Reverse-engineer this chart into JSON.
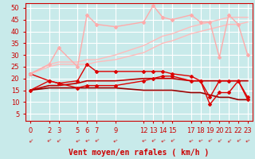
{
  "xlabel": "Vent moyen/en rafales ( km/h )",
  "background_color": "#c8eaea",
  "grid_color": "#ffffff",
  "xlim": [
    -0.5,
    23.5
  ],
  "ylim": [
    2,
    52
  ],
  "yticks": [
    5,
    10,
    15,
    20,
    25,
    30,
    35,
    40,
    45,
    50
  ],
  "xticks": [
    0,
    2,
    3,
    5,
    6,
    7,
    9,
    12,
    13,
    14,
    15,
    17,
    18,
    19,
    20,
    21,
    22,
    23
  ],
  "x": [
    0,
    2,
    3,
    5,
    6,
    7,
    9,
    12,
    13,
    14,
    15,
    17,
    18,
    19,
    20,
    21,
    22,
    23
  ],
  "series": [
    {
      "label": "pink_squiggly_with_markers",
      "y": [
        22,
        26,
        33,
        25,
        47,
        43,
        42,
        44,
        51,
        46,
        45,
        47,
        44,
        44,
        29,
        47,
        43,
        30
      ],
      "color": "#ffaaaa",
      "lw": 1.0,
      "marker": "D",
      "ms": 2.0,
      "zorder": 6
    },
    {
      "label": "pink_line_upper",
      "y": [
        22,
        26,
        27,
        27,
        28,
        28,
        30,
        34,
        36,
        38,
        39,
        42,
        43,
        44,
        45,
        46,
        46,
        46
      ],
      "color": "#ffbbbb",
      "lw": 1.0,
      "marker": null,
      "ms": 0,
      "zorder": 2
    },
    {
      "label": "pink_line_lower",
      "y": [
        22,
        25,
        26,
        26,
        26,
        27,
        28,
        31,
        33,
        35,
        36,
        39,
        40,
        41,
        42,
        43,
        43,
        44
      ],
      "color": "#ffbbbb",
      "lw": 1.0,
      "marker": null,
      "ms": 0,
      "zorder": 2
    },
    {
      "label": "red_with_markers_upper",
      "y": [
        22,
        19,
        18,
        19,
        26,
        23,
        23,
        23,
        23,
        23,
        22,
        21,
        19,
        12,
        19,
        19,
        19,
        12
      ],
      "color": "#dd0000",
      "lw": 1.0,
      "marker": "D",
      "ms": 2.0,
      "zorder": 5
    },
    {
      "label": "red_with_markers_lower",
      "y": [
        15,
        19,
        18,
        16,
        17,
        17,
        17,
        19,
        20,
        21,
        21,
        19,
        19,
        9,
        14,
        14,
        19,
        11
      ],
      "color": "#dd0000",
      "lw": 1.0,
      "marker": "D",
      "ms": 2.0,
      "zorder": 5
    },
    {
      "label": "dark_red_flat_upper",
      "y": [
        15,
        17,
        17,
        18,
        19,
        19,
        19,
        20,
        20,
        20,
        20,
        19,
        19,
        19,
        19,
        19,
        19,
        19
      ],
      "color": "#bb0000",
      "lw": 1.2,
      "marker": null,
      "ms": 0,
      "zorder": 3
    },
    {
      "label": "dark_red_declining",
      "y": [
        15,
        16,
        16,
        16,
        16,
        16,
        16,
        15,
        15,
        15,
        15,
        14,
        14,
        13,
        12,
        12,
        11,
        11
      ],
      "color": "#990000",
      "lw": 1.2,
      "marker": null,
      "ms": 0,
      "zorder": 3
    }
  ],
  "arrow_rotations": [
    225,
    215,
    220,
    210,
    205,
    215,
    210,
    205,
    215,
    210,
    215,
    210,
    205,
    215,
    220,
    225,
    215,
    210
  ],
  "axis_color": "#cc0000",
  "tick_color": "#cc0000",
  "label_color": "#cc0000",
  "label_fontsize": 7,
  "tick_fontsize": 6
}
